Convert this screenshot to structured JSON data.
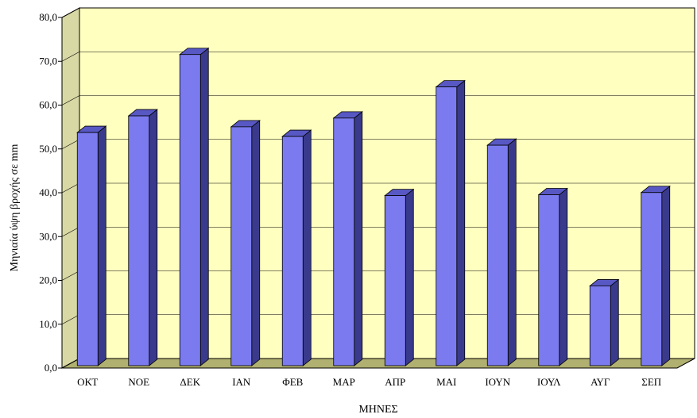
{
  "chart_data": {
    "type": "bar",
    "title": "",
    "xlabel": "ΜΗΝΕΣ",
    "ylabel": "Μηνιαία ύψη βροχής σε mm",
    "categories": [
      "ΟΚΤ",
      "ΝΟΕ",
      "ΔΕΚ",
      "ΙΑΝ",
      "ΦΕΒ",
      "ΜΑΡ",
      "ΑΠΡ",
      "ΜΑΙ",
      "ΙΟΥΝ",
      "ΙΟΥΛ",
      "ΑΥΓ",
      "ΣΕΠ"
    ],
    "values": [
      53.2,
      57.0,
      71.0,
      54.5,
      52.3,
      56.5,
      38.8,
      63.6,
      50.3,
      39.0,
      18.2,
      39.5
    ],
    "ylim": [
      0,
      80
    ],
    "yticks": [
      "0,0",
      "10,0",
      "20,0",
      "30,0",
      "40,0",
      "50,0",
      "60,0",
      "70,0",
      "80,0"
    ],
    "grid": true,
    "legend": "none",
    "colors": {
      "bar_front": "#7b7bef",
      "bar_side": "#3a3a8c",
      "bar_top": "#5858c4",
      "plot_back": "#ffffc0",
      "plot_side": "#d8d8a4",
      "plot_floor": "#b0b070",
      "gridline": "#000000"
    }
  }
}
